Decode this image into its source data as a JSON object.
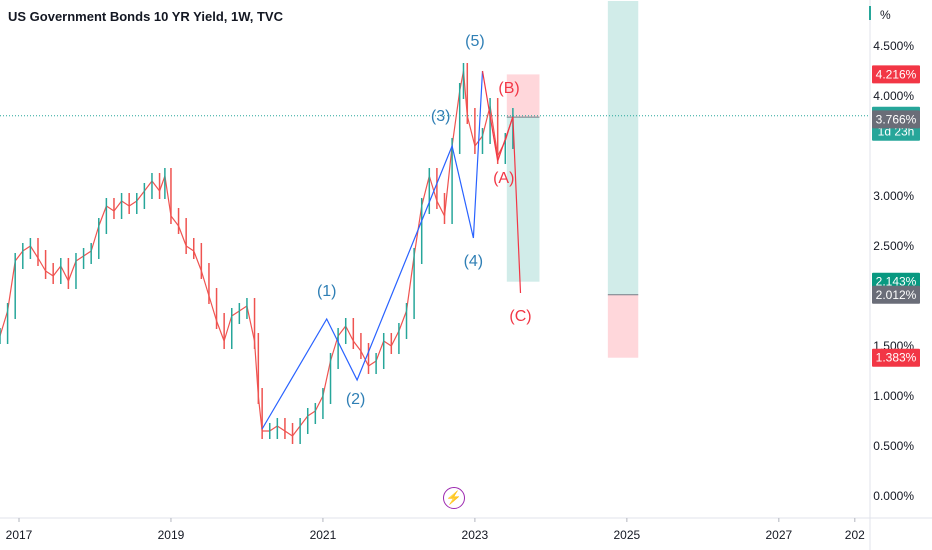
{
  "header": {
    "title": "US Government Bonds 10 YR Yield, 1W, TVC",
    "unit": "%"
  },
  "chart_data": {
    "type": "line",
    "title": "US Government Bonds 10 YR Yield, 1W, TVC",
    "xlabel": "",
    "ylabel": "%",
    "x_ticks": [
      "2017",
      "2019",
      "2021",
      "2023",
      "2025",
      "2027",
      "202"
    ],
    "y_ticks": [
      "0.000%",
      "0.500%",
      "1.000%",
      "1.500%",
      "2.500%",
      "3.000%",
      "4.000%",
      "4.500%"
    ],
    "xlim": [
      2016.75,
      2028.2
    ],
    "ylim": [
      -0.1,
      4.95
    ],
    "colors": {
      "up": "#26a69a",
      "down": "#ef5350",
      "wave_blue": "#2962ff",
      "wave_red": "#f23645",
      "label_blue": "#2f7fb5",
      "label_red": "#f23645",
      "profit_zone": "#b2dfdb",
      "loss_zone": "#ffcdd2"
    },
    "series": [
      {
        "name": "",
        "x": [
          2016.75,
          2016.85,
          2016.95,
          2017.05,
          2017.15,
          2017.25,
          2017.35,
          2017.45,
          2017.55,
          2017.65,
          2017.75,
          2017.85,
          2017.95,
          2018.05,
          2018.15,
          2018.25,
          2018.35,
          2018.45,
          2018.55,
          2018.65,
          2018.75,
          2018.85,
          2018.92,
          2019.0,
          2019.1,
          2019.2,
          2019.3,
          2019.4,
          2019.5,
          2019.6,
          2019.7,
          2019.8,
          2019.9,
          2020.0,
          2020.1,
          2020.15,
          2020.2,
          2020.3,
          2020.4,
          2020.5,
          2020.6,
          2020.7,
          2020.8,
          2020.9,
          2021.0,
          2021.1,
          2021.2,
          2021.3,
          2021.4,
          2021.5,
          2021.6,
          2021.7,
          2021.8,
          2021.9,
          2022.0,
          2022.1,
          2022.2,
          2022.3,
          2022.4,
          2022.5,
          2022.6,
          2022.7,
          2022.8,
          2022.85,
          2022.9,
          2023.0,
          2023.1,
          2023.2,
          2023.3,
          2023.4,
          2023.5
        ],
        "y": [
          1.6,
          1.85,
          2.35,
          2.45,
          2.5,
          2.38,
          2.25,
          2.2,
          2.3,
          2.15,
          2.35,
          2.4,
          2.45,
          2.7,
          2.9,
          2.85,
          2.95,
          2.9,
          2.95,
          3.05,
          3.15,
          3.05,
          3.2,
          2.8,
          2.7,
          2.5,
          2.45,
          2.25,
          2.0,
          1.75,
          1.55,
          1.8,
          1.85,
          1.9,
          1.55,
          1.0,
          0.65,
          0.65,
          0.7,
          0.65,
          0.6,
          0.7,
          0.8,
          0.85,
          1.0,
          1.35,
          1.6,
          1.7,
          1.55,
          1.45,
          1.3,
          1.35,
          1.55,
          1.5,
          1.65,
          1.85,
          2.4,
          2.9,
          3.2,
          2.95,
          2.8,
          3.5,
          4.05,
          4.25,
          3.8,
          3.5,
          3.6,
          3.9,
          3.4,
          3.55,
          3.8
        ]
      }
    ],
    "elliott_impulse": {
      "x": [
        2020.2,
        2021.05,
        2021.45,
        2022.7,
        2022.98,
        2023.1
      ],
      "y": [
        0.67,
        1.77,
        1.16,
        3.5,
        2.58,
        4.25
      ]
    },
    "elliott_correction": {
      "x": [
        2023.1,
        2023.3,
        2023.5,
        2023.6
      ],
      "y": [
        4.25,
        3.35,
        3.79,
        2.03
      ]
    },
    "wave_labels": [
      {
        "text": "(1)",
        "x": 2021.05,
        "y": 2.0,
        "color": "#2f7fb5"
      },
      {
        "text": "(2)",
        "x": 2021.43,
        "y": 0.92,
        "color": "#2f7fb5"
      },
      {
        "text": "(3)",
        "x": 2022.55,
        "y": 3.75,
        "color": "#2f7fb5"
      },
      {
        "text": "(4)",
        "x": 2022.98,
        "y": 2.3,
        "color": "#2f7fb5"
      },
      {
        "text": "(5)",
        "x": 2023.0,
        "y": 4.5,
        "color": "#2f7fb5"
      },
      {
        "text": "(A)",
        "x": 2023.38,
        "y": 3.13,
        "color": "#f23645"
      },
      {
        "text": "(B)",
        "x": 2023.45,
        "y": 4.03,
        "color": "#f23645"
      },
      {
        "text": "(C)",
        "x": 2023.6,
        "y": 1.75,
        "color": "#f23645"
      }
    ],
    "position_small": {
      "x_start": 2023.42,
      "x_end": 2023.85,
      "entry": 3.789,
      "stop": 4.216,
      "target": 2.143
    },
    "position_large": {
      "x_start": 2024.75,
      "x_end": 2025.15,
      "entry": 2.012,
      "stop": 1.383,
      "target": 4.95
    },
    "current_price": 3.803,
    "price_tags": [
      {
        "text": "4.216%",
        "value": 4.216,
        "bg": "#f23645"
      },
      {
        "text": "3.803%",
        "sub": "1d 23h",
        "value": 3.803,
        "bg": "#26a69a"
      },
      {
        "text": "3.766%",
        "value": 3.766,
        "bg": "#6a6d78"
      },
      {
        "text": "2.143%",
        "value": 2.143,
        "bg": "#089981"
      },
      {
        "text": "2.012%",
        "value": 2.012,
        "bg": "#6a6d78"
      },
      {
        "text": "1.383%",
        "value": 1.383,
        "bg": "#f23645"
      }
    ],
    "grid": false,
    "legend": "none"
  },
  "icons": {
    "flash": "flash-icon"
  }
}
